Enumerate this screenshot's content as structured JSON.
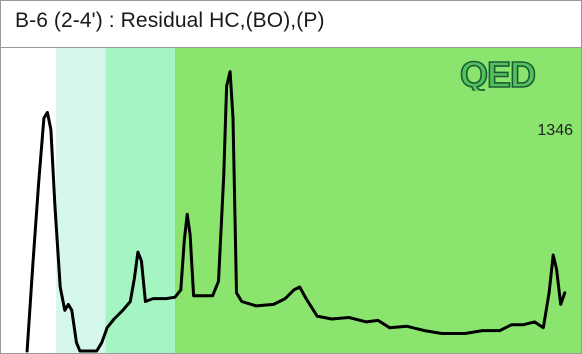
{
  "title": "B-6 (2-4') : Residual HC,(BO),(P)",
  "logo_text": "QED",
  "sample_number": "1346",
  "colors": {
    "band_light": "#d6f8ea",
    "band_mid": "#a5f5c2",
    "band_main": "#8be46d",
    "trace": "#000000",
    "border": "#9a9a9a",
    "logo_dark": "#1d5a3a",
    "logo_light": "#52c25a"
  },
  "chart_data": {
    "type": "line",
    "title": "B-6 (2-4') : Residual HC,(BO),(P)",
    "xlabel": "",
    "ylabel": "",
    "xlim": [
      0,
      100
    ],
    "ylim": [
      0,
      100
    ],
    "grid": false,
    "legend": "none",
    "bands": [
      {
        "from": 0,
        "to": 9.5,
        "color": "#ffffff"
      },
      {
        "from": 9.5,
        "to": 18,
        "color": "#d6f8ea"
      },
      {
        "from": 18,
        "to": 30,
        "color": "#a5f5c2"
      },
      {
        "from": 30,
        "to": 100,
        "color": "#8be46d"
      }
    ],
    "series": [
      {
        "values": [
          [
            4.5,
            0
          ],
          [
            5.5,
            30
          ],
          [
            6.5,
            58
          ],
          [
            7.4,
            80
          ],
          [
            8.0,
            82
          ],
          [
            8.6,
            76
          ],
          [
            9.3,
            50
          ],
          [
            10.2,
            22
          ],
          [
            11.0,
            14
          ],
          [
            11.6,
            16
          ],
          [
            12.2,
            14
          ],
          [
            13.0,
            3
          ],
          [
            13.6,
            0
          ],
          [
            16.5,
            0
          ],
          [
            17.4,
            3
          ],
          [
            18.3,
            8
          ],
          [
            19.5,
            11
          ],
          [
            21.0,
            14
          ],
          [
            22.3,
            17
          ],
          [
            23.0,
            25
          ],
          [
            23.6,
            34
          ],
          [
            24.2,
            31
          ],
          [
            24.9,
            17
          ],
          [
            26.2,
            18
          ],
          [
            28.5,
            18
          ],
          [
            30.0,
            18.5
          ],
          [
            31.0,
            21
          ],
          [
            31.6,
            38
          ],
          [
            32.1,
            47
          ],
          [
            32.6,
            40
          ],
          [
            33.2,
            19
          ],
          [
            34.5,
            19
          ],
          [
            36.5,
            19
          ],
          [
            37.5,
            24
          ],
          [
            38.4,
            60
          ],
          [
            38.9,
            91
          ],
          [
            39.5,
            96
          ],
          [
            40.0,
            80
          ],
          [
            40.6,
            20
          ],
          [
            41.5,
            17
          ],
          [
            44.0,
            15.5
          ],
          [
            47.0,
            16
          ],
          [
            49.0,
            18
          ],
          [
            50.5,
            21
          ],
          [
            51.5,
            22
          ],
          [
            52.6,
            18
          ],
          [
            54.5,
            12
          ],
          [
            57.0,
            11
          ],
          [
            60.0,
            11.5
          ],
          [
            63.0,
            10
          ],
          [
            65.0,
            10.5
          ],
          [
            67.0,
            8
          ],
          [
            70.0,
            8.5
          ],
          [
            73.0,
            7
          ],
          [
            76.0,
            6
          ],
          [
            80.0,
            6
          ],
          [
            83.0,
            7
          ],
          [
            86.0,
            7
          ],
          [
            88.0,
            9
          ],
          [
            90.0,
            9
          ],
          [
            92.0,
            10
          ],
          [
            93.5,
            8
          ],
          [
            94.5,
            20
          ],
          [
            95.2,
            33
          ],
          [
            95.8,
            28
          ],
          [
            96.5,
            16
          ],
          [
            97.2,
            20
          ]
        ]
      }
    ]
  }
}
